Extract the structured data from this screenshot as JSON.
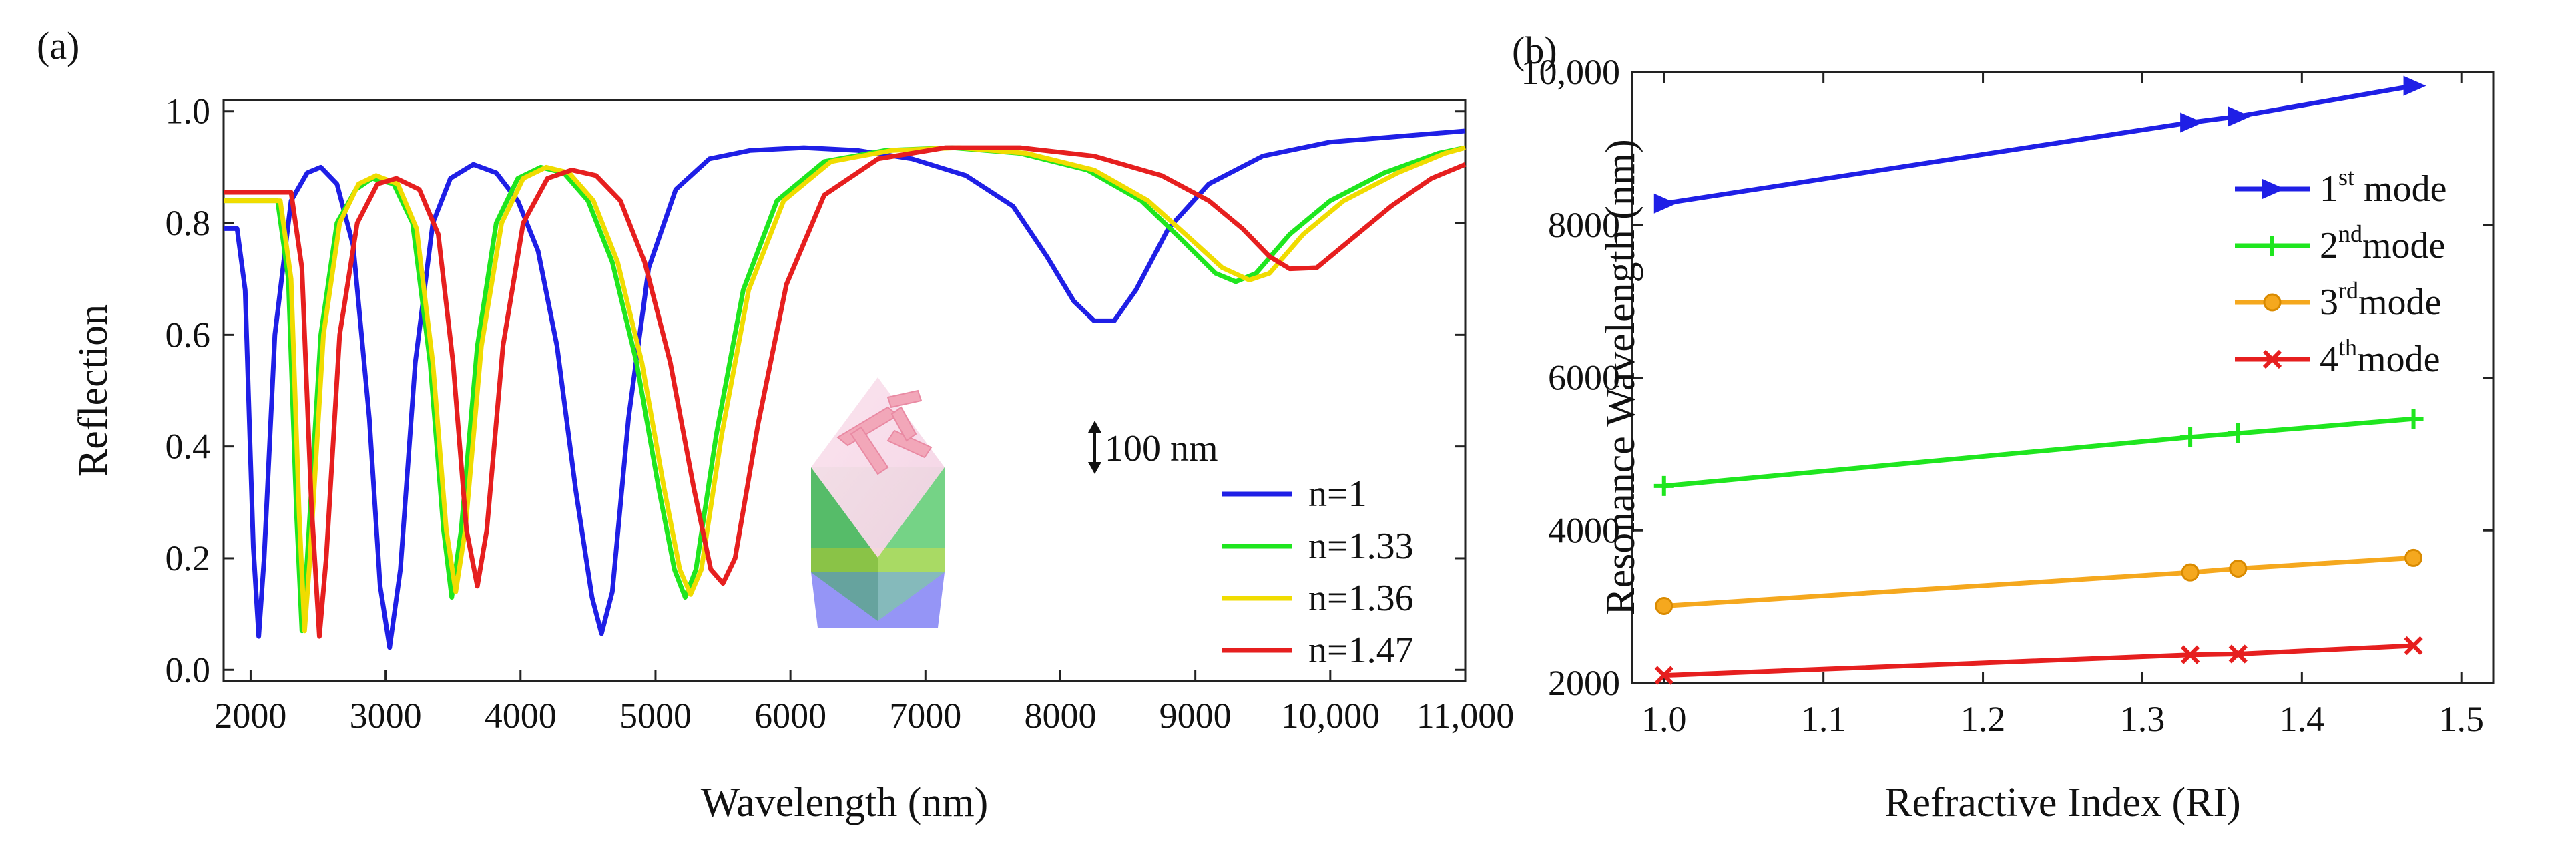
{
  "chart_data": [
    {
      "panel_label": "(a)",
      "type": "line",
      "xlabel": "Wavelength (nm)",
      "ylabel": "Reflection",
      "xlim": [
        1800,
        11000
      ],
      "ylim": [
        -0.02,
        1.02
      ],
      "x_ticks": [
        2000,
        3000,
        4000,
        5000,
        6000,
        7000,
        8000,
        9000,
        10000,
        11000
      ],
      "x_tick_labels": [
        "2000",
        "3000",
        "4000",
        "5000",
        "6000",
        "7000",
        "8000",
        "9000",
        "10,000",
        "11,000"
      ],
      "y_ticks": [
        0.0,
        0.2,
        0.4,
        0.6,
        0.8,
        1.0
      ],
      "y_tick_labels": [
        "0.0",
        "0.2",
        "0.4",
        "0.6",
        "0.8",
        "1.0"
      ],
      "grid": false,
      "legend_position": "bottom-right",
      "inset_label": "100 nm",
      "series": [
        {
          "name": "n=1",
          "color": "#1f1fe6",
          "points": [
            [
              1800,
              0.79
            ],
            [
              1900,
              0.79
            ],
            [
              1960,
              0.68
            ],
            [
              2020,
              0.22
            ],
            [
              2060,
              0.06
            ],
            [
              2100,
              0.2
            ],
            [
              2180,
              0.6
            ],
            [
              2300,
              0.84
            ],
            [
              2420,
              0.89
            ],
            [
              2520,
              0.9
            ],
            [
              2640,
              0.87
            ],
            [
              2760,
              0.76
            ],
            [
              2880,
              0.45
            ],
            [
              2960,
              0.15
            ],
            [
              3030,
              0.04
            ],
            [
              3110,
              0.18
            ],
            [
              3220,
              0.55
            ],
            [
              3350,
              0.8
            ],
            [
              3480,
              0.88
            ],
            [
              3650,
              0.905
            ],
            [
              3820,
              0.89
            ],
            [
              3980,
              0.84
            ],
            [
              4130,
              0.75
            ],
            [
              4270,
              0.58
            ],
            [
              4410,
              0.32
            ],
            [
              4530,
              0.13
            ],
            [
              4600,
              0.065
            ],
            [
              4680,
              0.14
            ],
            [
              4800,
              0.45
            ],
            [
              4950,
              0.72
            ],
            [
              5150,
              0.86
            ],
            [
              5400,
              0.915
            ],
            [
              5700,
              0.93
            ],
            [
              6100,
              0.935
            ],
            [
              6500,
              0.93
            ],
            [
              6900,
              0.915
            ],
            [
              7300,
              0.885
            ],
            [
              7650,
              0.83
            ],
            [
              7900,
              0.74
            ],
            [
              8100,
              0.66
            ],
            [
              8250,
              0.625
            ],
            [
              8400,
              0.625
            ],
            [
              8560,
              0.68
            ],
            [
              8800,
              0.79
            ],
            [
              9100,
              0.87
            ],
            [
              9500,
              0.92
            ],
            [
              10000,
              0.945
            ],
            [
              10500,
              0.955
            ],
            [
              11000,
              0.965
            ]
          ]
        },
        {
          "name": "n=1.33",
          "color": "#1fe61f",
          "points": [
            [
              1800,
              0.84
            ],
            [
              2200,
              0.84
            ],
            [
              2280,
              0.7
            ],
            [
              2340,
              0.28
            ],
            [
              2380,
              0.07
            ],
            [
              2420,
              0.2
            ],
            [
              2520,
              0.6
            ],
            [
              2640,
              0.8
            ],
            [
              2780,
              0.86
            ],
            [
              2900,
              0.88
            ],
            [
              3060,
              0.87
            ],
            [
              3200,
              0.8
            ],
            [
              3330,
              0.55
            ],
            [
              3430,
              0.25
            ],
            [
              3490,
              0.13
            ],
            [
              3560,
              0.25
            ],
            [
              3680,
              0.58
            ],
            [
              3820,
              0.8
            ],
            [
              3980,
              0.88
            ],
            [
              4150,
              0.9
            ],
            [
              4320,
              0.89
            ],
            [
              4500,
              0.84
            ],
            [
              4680,
              0.73
            ],
            [
              4860,
              0.55
            ],
            [
              5020,
              0.33
            ],
            [
              5140,
              0.18
            ],
            [
              5220,
              0.13
            ],
            [
              5300,
              0.18
            ],
            [
              5450,
              0.42
            ],
            [
              5650,
              0.68
            ],
            [
              5900,
              0.84
            ],
            [
              6250,
              0.91
            ],
            [
              6700,
              0.93
            ],
            [
              7200,
              0.935
            ],
            [
              7700,
              0.925
            ],
            [
              8200,
              0.895
            ],
            [
              8600,
              0.84
            ],
            [
              8900,
              0.77
            ],
            [
              9150,
              0.71
            ],
            [
              9300,
              0.695
            ],
            [
              9450,
              0.71
            ],
            [
              9700,
              0.78
            ],
            [
              10000,
              0.84
            ],
            [
              10400,
              0.89
            ],
            [
              10800,
              0.925
            ],
            [
              11000,
              0.935
            ]
          ]
        },
        {
          "name": "n=1.36",
          "color": "#f0dc00",
          "points": [
            [
              1800,
              0.84
            ],
            [
              2220,
              0.84
            ],
            [
              2300,
              0.7
            ],
            [
              2360,
              0.28
            ],
            [
              2400,
              0.07
            ],
            [
              2440,
              0.2
            ],
            [
              2540,
              0.6
            ],
            [
              2660,
              0.8
            ],
            [
              2800,
              0.87
            ],
            [
              2930,
              0.885
            ],
            [
              3090,
              0.87
            ],
            [
              3230,
              0.79
            ],
            [
              3350,
              0.55
            ],
            [
              3450,
              0.25
            ],
            [
              3520,
              0.14
            ],
            [
              3590,
              0.25
            ],
            [
              3710,
              0.58
            ],
            [
              3860,
              0.8
            ],
            [
              4020,
              0.88
            ],
            [
              4190,
              0.9
            ],
            [
              4360,
              0.89
            ],
            [
              4540,
              0.84
            ],
            [
              4720,
              0.73
            ],
            [
              4900,
              0.55
            ],
            [
              5060,
              0.33
            ],
            [
              5180,
              0.18
            ],
            [
              5260,
              0.135
            ],
            [
              5340,
              0.18
            ],
            [
              5490,
              0.42
            ],
            [
              5690,
              0.68
            ],
            [
              5950,
              0.84
            ],
            [
              6300,
              0.91
            ],
            [
              6750,
              0.93
            ],
            [
              7250,
              0.935
            ],
            [
              7750,
              0.925
            ],
            [
              8250,
              0.895
            ],
            [
              8650,
              0.84
            ],
            [
              8950,
              0.775
            ],
            [
              9200,
              0.72
            ],
            [
              9400,
              0.698
            ],
            [
              9550,
              0.71
            ],
            [
              9800,
              0.78
            ],
            [
              10100,
              0.84
            ],
            [
              10500,
              0.89
            ],
            [
              10850,
              0.925
            ],
            [
              11000,
              0.935
            ]
          ]
        },
        {
          "name": "n=1.47",
          "color": "#e61f1f",
          "points": [
            [
              1800,
              0.855
            ],
            [
              2300,
              0.855
            ],
            [
              2380,
              0.72
            ],
            [
              2450,
              0.3
            ],
            [
              2510,
              0.06
            ],
            [
              2560,
              0.2
            ],
            [
              2660,
              0.6
            ],
            [
              2790,
              0.8
            ],
            [
              2940,
              0.87
            ],
            [
              3080,
              0.88
            ],
            [
              3250,
              0.86
            ],
            [
              3390,
              0.78
            ],
            [
              3500,
              0.55
            ],
            [
              3600,
              0.25
            ],
            [
              3680,
              0.15
            ],
            [
              3750,
              0.25
            ],
            [
              3870,
              0.58
            ],
            [
              4020,
              0.8
            ],
            [
              4200,
              0.88
            ],
            [
              4380,
              0.895
            ],
            [
              4560,
              0.885
            ],
            [
              4740,
              0.84
            ],
            [
              4920,
              0.73
            ],
            [
              5110,
              0.55
            ],
            [
              5280,
              0.33
            ],
            [
              5410,
              0.18
            ],
            [
              5500,
              0.155
            ],
            [
              5590,
              0.2
            ],
            [
              5760,
              0.44
            ],
            [
              5970,
              0.69
            ],
            [
              6250,
              0.85
            ],
            [
              6650,
              0.915
            ],
            [
              7150,
              0.935
            ],
            [
              7700,
              0.935
            ],
            [
              8250,
              0.92
            ],
            [
              8750,
              0.885
            ],
            [
              9100,
              0.84
            ],
            [
              9350,
              0.79
            ],
            [
              9550,
              0.74
            ],
            [
              9700,
              0.718
            ],
            [
              9900,
              0.72
            ],
            [
              10150,
              0.77
            ],
            [
              10450,
              0.83
            ],
            [
              10750,
              0.88
            ],
            [
              11000,
              0.905
            ]
          ]
        }
      ]
    },
    {
      "panel_label": "(b)",
      "type": "line",
      "xlabel": "Refractive Index (RI)",
      "ylabel": "Resonance Wavelength (nm)",
      "xlim": [
        0.98,
        1.52
      ],
      "ylim": [
        2000,
        10000
      ],
      "x_ticks": [
        1.0,
        1.1,
        1.2,
        1.3,
        1.4,
        1.5
      ],
      "x_tick_labels": [
        "1.0",
        "1.1",
        "1.2",
        "1.3",
        "1.4",
        "1.5"
      ],
      "y_ticks": [
        2000,
        4000,
        6000,
        8000,
        10000
      ],
      "y_tick_labels": [
        "2000",
        "4000",
        "6000",
        "8000",
        "10,000"
      ],
      "grid": false,
      "legend_position": "top-right",
      "x": [
        1.0,
        1.33,
        1.36,
        1.47
      ],
      "series": [
        {
          "name_main": "1",
          "name_sup": "st",
          "name_tail": " mode",
          "color": "#1f1fe6",
          "marker": "triangle-right",
          "values": [
            8280,
            9340,
            9420,
            9820
          ]
        },
        {
          "name_main": "2",
          "name_sup": "nd",
          "name_tail": "mode",
          "color": "#1fe61f",
          "marker": "plus",
          "values": [
            4580,
            5220,
            5270,
            5460
          ]
        },
        {
          "name_main": "3",
          "name_sup": "rd",
          "name_tail": "mode",
          "color": "#f5a81e",
          "marker": "circle",
          "values": [
            3010,
            3450,
            3500,
            3640
          ]
        },
        {
          "name_main": "4",
          "name_sup": "th",
          "name_tail": "mode",
          "color": "#e61f1f",
          "marker": "x",
          "values": [
            2100,
            2370,
            2380,
            2490
          ]
        }
      ]
    }
  ]
}
